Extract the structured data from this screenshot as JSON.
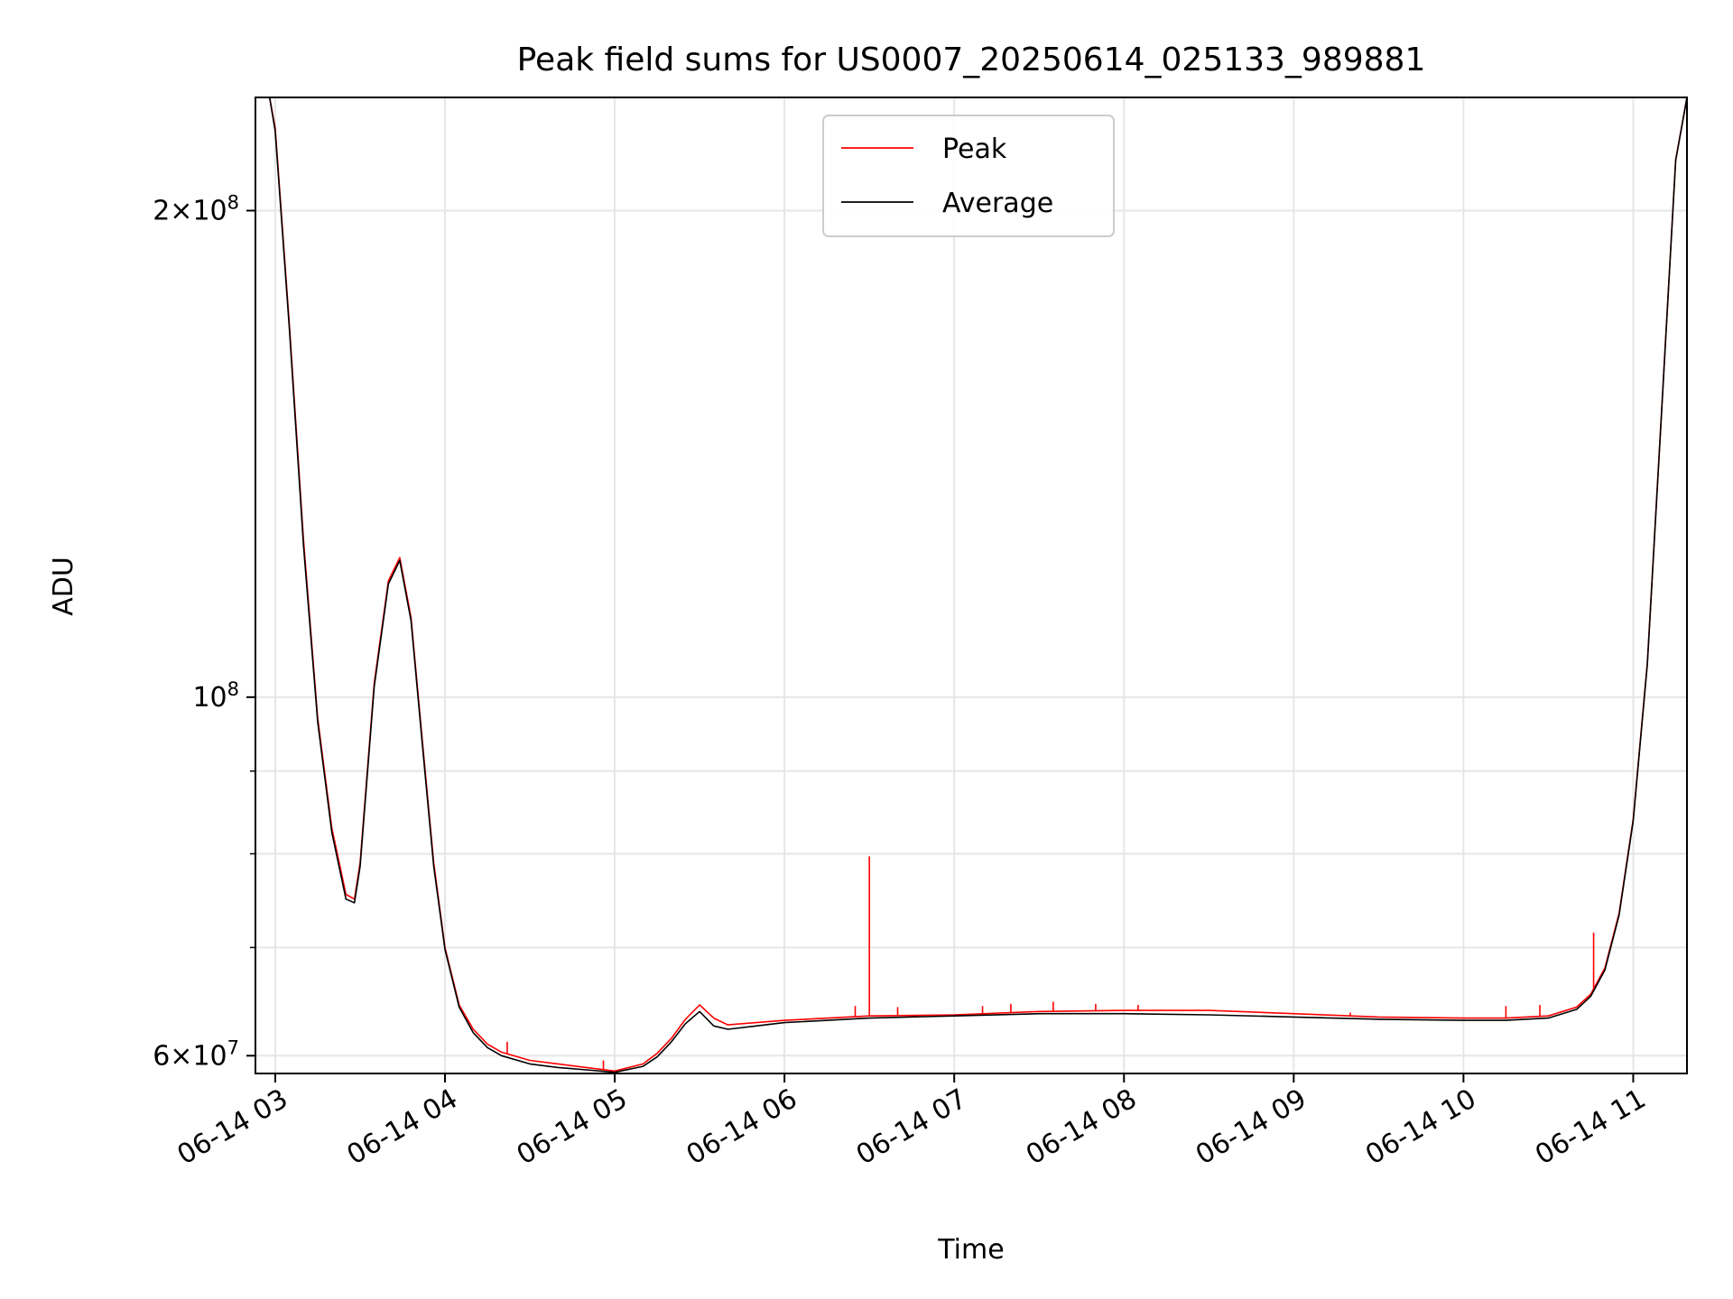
{
  "chart_data": {
    "type": "line",
    "title": "Peak field sums for US0007_20250614_025133_989881",
    "xlabel": "Time",
    "ylabel": "ADU",
    "x_unit": "date-time (UTC, 2025-06-14)",
    "xlim": [
      "2025-06-14 02:53",
      "2025-06-14 11:19"
    ],
    "ylim": [
      58500000,
      235000000
    ],
    "yscale": "log",
    "grid": true,
    "legend_position": "top-center",
    "x_ticks": [
      {
        "label": "06-14 03",
        "value": "2025-06-14 03:00"
      },
      {
        "label": "06-14 04",
        "value": "2025-06-14 04:00"
      },
      {
        "label": "06-14 05",
        "value": "2025-06-14 05:00"
      },
      {
        "label": "06-14 06",
        "value": "2025-06-14 06:00"
      },
      {
        "label": "06-14 07",
        "value": "2025-06-14 07:00"
      },
      {
        "label": "06-14 08",
        "value": "2025-06-14 08:00"
      },
      {
        "label": "06-14 09",
        "value": "2025-06-14 09:00"
      },
      {
        "label": "06-14 10",
        "value": "2025-06-14 10:00"
      },
      {
        "label": "06-14 11",
        "value": "2025-06-14 11:00"
      }
    ],
    "y_ticks": [
      {
        "label_base": "6×10",
        "label_exp": "7",
        "value": 60000000
      },
      {
        "label_base": "10",
        "label_exp": "8",
        "value": 100000000
      },
      {
        "label_base": "2×10",
        "label_exp": "8",
        "value": 200000000
      }
    ],
    "y_minor_ticks": [
      70000000,
      80000000,
      90000000
    ],
    "series": [
      {
        "name": "Peak",
        "color": "#ff0000",
        "x": [
          "2025-06-14 02:53",
          "2025-06-14 02:58",
          "2025-06-14 03:00",
          "2025-06-14 03:05",
          "2025-06-14 03:10",
          "2025-06-14 03:15",
          "2025-06-14 03:20",
          "2025-06-14 03:25",
          "2025-06-14 03:28",
          "2025-06-14 03:30",
          "2025-06-14 03:35",
          "2025-06-14 03:40",
          "2025-06-14 03:44",
          "2025-06-14 03:48",
          "2025-06-14 03:52",
          "2025-06-14 03:56",
          "2025-06-14 04:00",
          "2025-06-14 04:05",
          "2025-06-14 04:10",
          "2025-06-14 04:15",
          "2025-06-14 04:20",
          "2025-06-14 04:30",
          "2025-06-14 04:40",
          "2025-06-14 04:50",
          "2025-06-14 05:00",
          "2025-06-14 05:10",
          "2025-06-14 05:15",
          "2025-06-14 05:20",
          "2025-06-14 05:25",
          "2025-06-14 05:30",
          "2025-06-14 05:35",
          "2025-06-14 05:40",
          "2025-06-14 05:50",
          "2025-06-14 06:00",
          "2025-06-14 06:30",
          "2025-06-14 07:00",
          "2025-06-14 07:30",
          "2025-06-14 08:00",
          "2025-06-14 08:30",
          "2025-06-14 09:00",
          "2025-06-14 09:30",
          "2025-06-14 10:00",
          "2025-06-14 10:15",
          "2025-06-14 10:30",
          "2025-06-14 10:40",
          "2025-06-14 10:45",
          "2025-06-14 10:50",
          "2025-06-14 10:55",
          "2025-06-14 11:00",
          "2025-06-14 11:05",
          "2025-06-14 11:10",
          "2025-06-14 11:15",
          "2025-06-14 11:19"
        ],
        "y": [
          235000000,
          235000000,
          225000000,
          170000000,
          125000000,
          97000000,
          83000000,
          75500000,
          75000000,
          79000000,
          102000000,
          118000000,
          122000000,
          112000000,
          94000000,
          79000000,
          70000000,
          64500000,
          62300000,
          61000000,
          60300000,
          59600000,
          59300000,
          59000000,
          58700000,
          59300000,
          60200000,
          61500000,
          63200000,
          64500000,
          63300000,
          62700000,
          62900000,
          63100000,
          63500000,
          63600000,
          63900000,
          64000000,
          64000000,
          63700000,
          63400000,
          63300000,
          63300000,
          63500000,
          64300000,
          65500000,
          68000000,
          73500000,
          84000000,
          105000000,
          150000000,
          215000000,
          235000000
        ],
        "spikes": [
          {
            "x": "2025-06-14 06:30",
            "y": 79700000
          },
          {
            "x": "2025-06-14 04:22",
            "y": 61200000
          },
          {
            "x": "2025-06-14 04:56",
            "y": 59600000
          },
          {
            "x": "2025-06-14 06:25",
            "y": 64400000
          },
          {
            "x": "2025-06-14 06:40",
            "y": 64300000
          },
          {
            "x": "2025-06-14 07:10",
            "y": 64400000
          },
          {
            "x": "2025-06-14 07:20",
            "y": 64600000
          },
          {
            "x": "2025-06-14 07:35",
            "y": 64800000
          },
          {
            "x": "2025-06-14 07:50",
            "y": 64600000
          },
          {
            "x": "2025-06-14 08:05",
            "y": 64500000
          },
          {
            "x": "2025-06-14 09:20",
            "y": 63800000
          },
          {
            "x": "2025-06-14 10:15",
            "y": 64400000
          },
          {
            "x": "2025-06-14 10:27",
            "y": 64500000
          },
          {
            "x": "2025-06-14 10:46",
            "y": 71500000
          }
        ]
      },
      {
        "name": "Average",
        "color": "#000000",
        "x": [
          "2025-06-14 02:53",
          "2025-06-14 02:58",
          "2025-06-14 03:00",
          "2025-06-14 03:05",
          "2025-06-14 03:10",
          "2025-06-14 03:15",
          "2025-06-14 03:20",
          "2025-06-14 03:25",
          "2025-06-14 03:28",
          "2025-06-14 03:30",
          "2025-06-14 03:35",
          "2025-06-14 03:40",
          "2025-06-14 03:44",
          "2025-06-14 03:48",
          "2025-06-14 03:52",
          "2025-06-14 03:56",
          "2025-06-14 04:00",
          "2025-06-14 04:05",
          "2025-06-14 04:10",
          "2025-06-14 04:15",
          "2025-06-14 04:20",
          "2025-06-14 04:30",
          "2025-06-14 04:40",
          "2025-06-14 04:50",
          "2025-06-14 05:00",
          "2025-06-14 05:10",
          "2025-06-14 05:15",
          "2025-06-14 05:20",
          "2025-06-14 05:25",
          "2025-06-14 05:30",
          "2025-06-14 05:35",
          "2025-06-14 05:40",
          "2025-06-14 05:50",
          "2025-06-14 06:00",
          "2025-06-14 06:30",
          "2025-06-14 07:00",
          "2025-06-14 07:30",
          "2025-06-14 08:00",
          "2025-06-14 08:30",
          "2025-06-14 09:00",
          "2025-06-14 09:30",
          "2025-06-14 10:00",
          "2025-06-14 10:15",
          "2025-06-14 10:30",
          "2025-06-14 10:40",
          "2025-06-14 10:45",
          "2025-06-14 10:50",
          "2025-06-14 10:55",
          "2025-06-14 11:00",
          "2025-06-14 11:05",
          "2025-06-14 11:10",
          "2025-06-14 11:15",
          "2025-06-14 11:19"
        ],
        "y": [
          235000000,
          235000000,
          224000000,
          169000000,
          124000000,
          96500000,
          82500000,
          75000000,
          74600000,
          78600000,
          101500000,
          117500000,
          121500000,
          111500000,
          93500000,
          78600000,
          69800000,
          64300000,
          62000000,
          60700000,
          60000000,
          59300000,
          59000000,
          58800000,
          58600000,
          59100000,
          59900000,
          61200000,
          62800000,
          63900000,
          62600000,
          62300000,
          62600000,
          62900000,
          63300000,
          63500000,
          63700000,
          63700000,
          63600000,
          63400000,
          63200000,
          63100000,
          63100000,
          63300000,
          64100000,
          65300000,
          67800000,
          73300000,
          83800000,
          104800000,
          149800000,
          214800000,
          235000000
        ]
      }
    ]
  }
}
